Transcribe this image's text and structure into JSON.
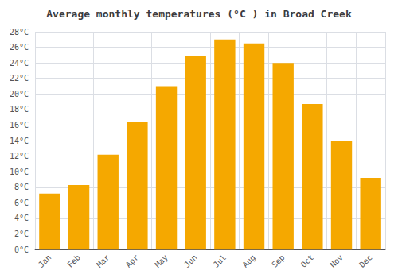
{
  "chart_data": {
    "type": "bar",
    "title": "Average monthly temperatures (°C ) in Broad Creek",
    "categories": [
      "Jan",
      "Feb",
      "Mar",
      "Apr",
      "May",
      "Jun",
      "Jul",
      "Aug",
      "Sep",
      "Oct",
      "Nov",
      "Dec"
    ],
    "values": [
      7.2,
      8.3,
      12.2,
      16.4,
      21.0,
      24.9,
      27.0,
      26.5,
      24.0,
      18.7,
      13.9,
      9.2
    ],
    "color": "#F5A800",
    "ylim": [
      0,
      28
    ],
    "yticks": [
      {
        "value": 0,
        "label": "0°C"
      },
      {
        "value": 2,
        "label": "2°C"
      },
      {
        "value": 4,
        "label": "4°C"
      },
      {
        "value": 6,
        "label": "6°C"
      },
      {
        "value": 8,
        "label": "8°C"
      },
      {
        "value": 10,
        "label": "10°C"
      },
      {
        "value": 12,
        "label": "12°C"
      },
      {
        "value": 14,
        "label": "14°C"
      },
      {
        "value": 16,
        "label": "16°C"
      },
      {
        "value": 18,
        "label": "18°C"
      },
      {
        "value": 20,
        "label": "20°C"
      },
      {
        "value": 22,
        "label": "22°C"
      },
      {
        "value": 24,
        "label": "24°C"
      },
      {
        "value": 26,
        "label": "26°C"
      },
      {
        "value": 28,
        "label": "28°C"
      }
    ],
    "grid": true
  }
}
